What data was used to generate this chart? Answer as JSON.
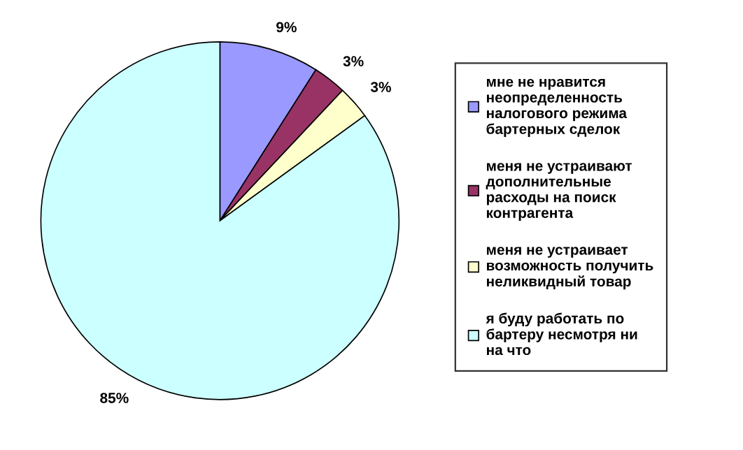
{
  "chart_data": {
    "type": "pie",
    "categories": [
      "мне не нравится\nнеопределенность\nналогового режима\nбартерных сделок",
      "меня не устраивают\nдополнительные\nрасходы на поиск\nконтрагента",
      "меня не устраивает\nвозможность получить\nнеликвидный товар",
      "я буду работать по\nбартеру несмотря ни\nна что"
    ],
    "values": [
      9,
      3,
      3,
      85
    ],
    "colors": [
      "#9999ff",
      "#993366",
      "#ffffcc",
      "#ccffff"
    ],
    "value_labels": [
      "9%",
      "3%",
      "3%",
      "85%"
    ],
    "legend": "right"
  }
}
